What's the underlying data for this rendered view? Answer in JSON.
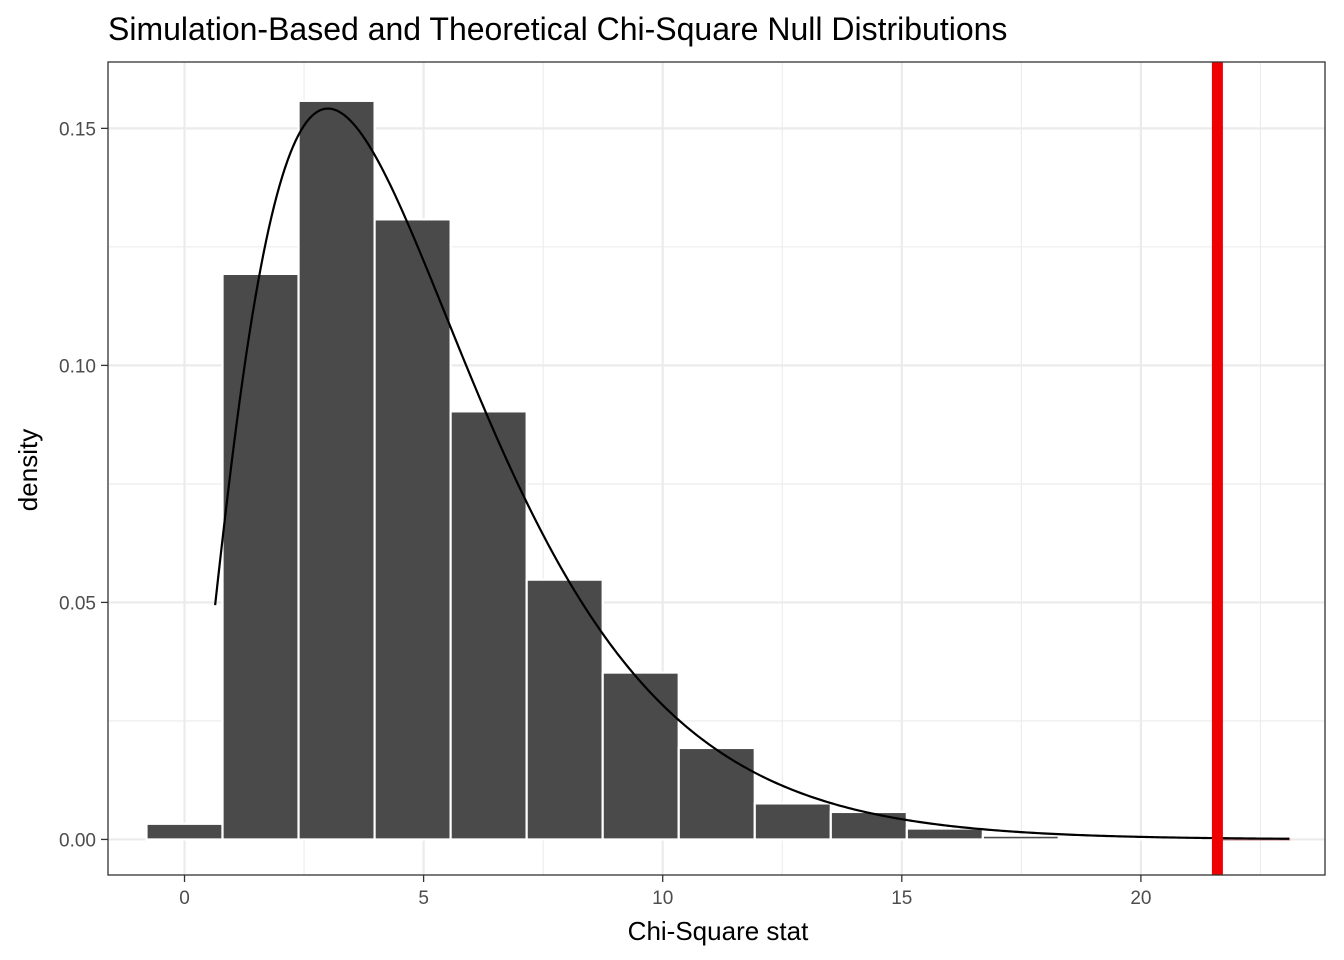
{
  "chart_data": {
    "type": "bar",
    "title": "Simulation-Based and Theoretical Chi-Square Null Distributions",
    "xlabel": "Chi-Square stat",
    "ylabel": "density",
    "xlim": [
      -1.6,
      23.85
    ],
    "ylim": [
      -0.0075,
      0.164
    ],
    "x_ticks": [
      0,
      5,
      10,
      15,
      20
    ],
    "x_tick_labels": [
      "0",
      "5",
      "10",
      "15",
      "20"
    ],
    "y_ticks": [
      0.0,
      0.05,
      0.1,
      0.15
    ],
    "y_tick_labels": [
      "0.00",
      "0.05",
      "0.10",
      "0.15"
    ],
    "grid": true,
    "bin_width": 1.59,
    "histogram": {
      "name": "simulation-based",
      "bin_centers": [
        0.0,
        1.59,
        3.18,
        4.77,
        6.36,
        7.95,
        9.54,
        11.13,
        12.72,
        14.31,
        15.9,
        17.49,
        19.08,
        20.67,
        22.26
      ],
      "density": [
        0.0033,
        0.1193,
        0.1558,
        0.1308,
        0.0903,
        0.0548,
        0.0352,
        0.0193,
        0.0076,
        0.0058,
        0.0023,
        0.0008,
        0.0004,
        0.0002,
        0.0001
      ],
      "fill": "#4a4a4a",
      "outline": "#ffffff"
    },
    "theoretical_curve": {
      "name": "theoretical chi-square",
      "degrees_of_freedom": 5,
      "x_range": [
        0.64,
        23.1
      ],
      "color": "#000000"
    },
    "observed_statistic": {
      "value": 21.6,
      "color": "#ee0000"
    },
    "shaded_region": {
      "from": 21.6,
      "to": 23.1,
      "color": "#c87f86"
    }
  }
}
